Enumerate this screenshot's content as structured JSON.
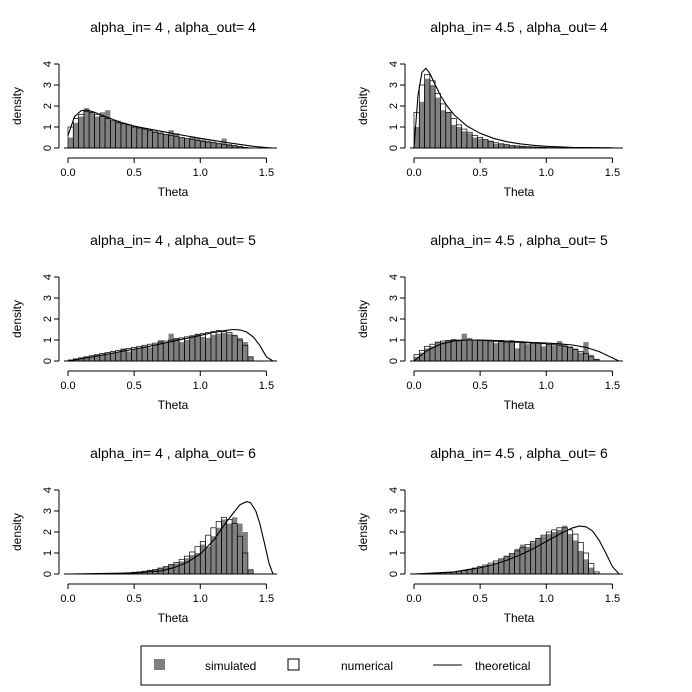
{
  "chart_data": [
    {
      "type": "bar",
      "title": "alpha_in= 4 , alpha_out= 4",
      "xlabel": "Theta",
      "ylabel": "density",
      "xlim": [
        0,
        1.58
      ],
      "ylim": [
        0,
        4
      ],
      "xticks": [
        "0.0",
        "0.5",
        "1.0",
        "1.5"
      ],
      "yticks": [
        "0",
        "1",
        "2",
        "3",
        "4"
      ],
      "bin_width": 0.04,
      "series": [
        {
          "name": "simulated",
          "values": [
            0.5,
            1.2,
            1.5,
            1.9,
            1.7,
            1.5,
            1.7,
            1.8,
            1.3,
            1.3,
            1.2,
            1.1,
            1.05,
            1.0,
            0.95,
            0.9,
            0.8,
            0.75,
            0.65,
            0.85,
            0.7,
            0.5,
            0.45,
            0.55,
            0.5,
            0.4,
            0.35,
            0.3,
            0.25,
            0.45,
            0.2,
            0.15,
            0.1,
            0.05,
            0.02
          ]
        },
        {
          "name": "numerical",
          "values": [
            1.0,
            1.4,
            1.6,
            1.75,
            1.7,
            1.6,
            1.5,
            1.4,
            1.3,
            1.2,
            1.15,
            1.1,
            1.0,
            0.95,
            0.9,
            0.82,
            0.75,
            0.7,
            0.65,
            0.6,
            0.55,
            0.5,
            0.45,
            0.4,
            0.35,
            0.32,
            0.28,
            0.25,
            0.2,
            0.17,
            0.13,
            0.1,
            0.06,
            0.03,
            0.01
          ]
        }
      ],
      "theoretical": {
        "x": [
          0,
          0.05,
          0.1,
          0.15,
          0.2,
          0.3,
          0.4,
          0.5,
          0.6,
          0.7,
          0.8,
          0.9,
          1.0,
          1.1,
          1.2,
          1.3,
          1.4,
          1.5,
          1.55
        ],
        "y": [
          0.6,
          1.5,
          1.78,
          1.8,
          1.7,
          1.45,
          1.22,
          1.05,
          0.92,
          0.8,
          0.68,
          0.57,
          0.46,
          0.36,
          0.26,
          0.17,
          0.08,
          0.02,
          0
        ]
      }
    },
    {
      "type": "bar",
      "title": "alpha_in= 4.5 , alpha_out= 4",
      "xlabel": "Theta",
      "ylabel": "density",
      "xlim": [
        0,
        1.58
      ],
      "ylim": [
        0,
        4
      ],
      "xticks": [
        "0.0",
        "0.5",
        "1.0",
        "1.5"
      ],
      "yticks": [
        "0",
        "1",
        "2",
        "3",
        "4"
      ],
      "bin_width": 0.04,
      "series": [
        {
          "name": "simulated",
          "values": [
            1.0,
            2.2,
            3.3,
            3.0,
            2.4,
            1.8,
            1.7,
            1.1,
            1.0,
            0.8,
            0.7,
            0.5,
            0.45,
            0.4,
            0.35,
            0.2,
            0.2,
            0.15,
            0.1,
            0.1,
            0.1,
            0.05,
            0.05,
            0.04,
            0.03,
            0.02,
            0.02,
            0.01,
            0.01,
            0.01,
            0,
            0,
            0,
            0,
            0
          ]
        },
        {
          "name": "numerical",
          "values": [
            1.7,
            3.0,
            3.5,
            3.2,
            2.6,
            2.1,
            1.7,
            1.4,
            1.1,
            0.9,
            0.75,
            0.6,
            0.5,
            0.4,
            0.32,
            0.25,
            0.2,
            0.16,
            0.12,
            0.1,
            0.08,
            0.06,
            0.05,
            0.04,
            0.03,
            0.02,
            0.02,
            0.01,
            0.01,
            0.01,
            0,
            0,
            0,
            0,
            0
          ]
        }
      ],
      "theoretical": {
        "x": [
          0,
          0.03,
          0.06,
          0.09,
          0.12,
          0.15,
          0.2,
          0.25,
          0.3,
          0.4,
          0.5,
          0.6,
          0.7,
          0.8,
          0.9,
          1.0,
          1.2,
          1.5
        ],
        "y": [
          0,
          2.5,
          3.6,
          3.8,
          3.55,
          3.15,
          2.5,
          2.0,
          1.6,
          1.05,
          0.7,
          0.46,
          0.3,
          0.2,
          0.13,
          0.08,
          0.03,
          0.01
        ]
      }
    },
    {
      "type": "bar",
      "title": "alpha_in= 4 , alpha_out= 5",
      "xlabel": "Theta",
      "ylabel": "density",
      "xlim": [
        0,
        1.58
      ],
      "ylim": [
        0,
        4
      ],
      "xticks": [
        "0.0",
        "0.5",
        "1.0",
        "1.5"
      ],
      "yticks": [
        "0",
        "1",
        "2",
        "3",
        "4"
      ],
      "bin_width": 0.04,
      "series": [
        {
          "name": "simulated",
          "values": [
            0.05,
            0.1,
            0.15,
            0.2,
            0.2,
            0.3,
            0.3,
            0.35,
            0.4,
            0.4,
            0.6,
            0.45,
            0.55,
            0.6,
            0.7,
            0.65,
            0.8,
            1.0,
            0.85,
            1.3,
            1.1,
            0.9,
            1.0,
            1.2,
            1.3,
            1.15,
            1.1,
            1.25,
            1.3,
            1.35,
            1.3,
            1.25,
            1.1,
            0.9,
            0.2
          ]
        },
        {
          "name": "numerical",
          "values": [
            0.05,
            0.1,
            0.15,
            0.2,
            0.25,
            0.3,
            0.35,
            0.4,
            0.45,
            0.5,
            0.55,
            0.6,
            0.65,
            0.7,
            0.75,
            0.8,
            0.85,
            0.9,
            0.95,
            1.0,
            1.05,
            1.1,
            1.15,
            1.2,
            1.25,
            1.3,
            1.35,
            1.4,
            1.45,
            1.4,
            1.35,
            1.2,
            1.0,
            0.75,
            0.2
          ]
        }
      ],
      "theoretical": {
        "x": [
          0,
          0.2,
          0.4,
          0.6,
          0.8,
          1.0,
          1.1,
          1.2,
          1.25,
          1.3,
          1.35,
          1.4,
          1.45,
          1.5,
          1.55
        ],
        "y": [
          0,
          0.22,
          0.45,
          0.68,
          0.95,
          1.22,
          1.36,
          1.46,
          1.5,
          1.48,
          1.38,
          1.15,
          0.75,
          0.2,
          0
        ]
      }
    },
    {
      "type": "bar",
      "title": "alpha_in= 4.5 , alpha_out= 5",
      "xlabel": "Theta",
      "ylabel": "density",
      "xlim": [
        0,
        1.58
      ],
      "ylim": [
        0,
        4
      ],
      "xticks": [
        "0.0",
        "0.5",
        "1.0",
        "1.5"
      ],
      "yticks": [
        "0",
        "1",
        "2",
        "3",
        "4"
      ],
      "bin_width": 0.04,
      "series": [
        {
          "name": "simulated",
          "values": [
            0.2,
            0.4,
            0.6,
            0.7,
            0.9,
            0.9,
            1.0,
            1.05,
            1.0,
            1.3,
            1.1,
            1.0,
            1.0,
            1.0,
            0.95,
            0.85,
            1.0,
            0.9,
            1.0,
            0.6,
            0.9,
            0.8,
            0.85,
            0.9,
            0.7,
            0.8,
            0.75,
            0.95,
            0.8,
            0.7,
            0.6,
            0.4,
            0.9,
            0.3,
            0.1
          ]
        },
        {
          "name": "numerical",
          "values": [
            0.3,
            0.5,
            0.7,
            0.8,
            0.9,
            0.95,
            0.98,
            1.0,
            1.0,
            1.0,
            1.0,
            1.0,
            0.98,
            0.97,
            0.95,
            0.93,
            0.92,
            0.9,
            0.9,
            0.88,
            0.87,
            0.86,
            0.85,
            0.84,
            0.82,
            0.8,
            0.78,
            0.75,
            0.7,
            0.65,
            0.55,
            0.45,
            0.35,
            0.2,
            0.08
          ]
        }
      ],
      "theoretical": {
        "x": [
          0,
          0.1,
          0.2,
          0.3,
          0.4,
          0.5,
          0.6,
          0.7,
          0.8,
          0.9,
          1.0,
          1.1,
          1.2,
          1.3,
          1.4,
          1.5,
          1.55
        ],
        "y": [
          0,
          0.5,
          0.8,
          0.95,
          1.0,
          1.0,
          0.98,
          0.95,
          0.92,
          0.88,
          0.85,
          0.82,
          0.76,
          0.65,
          0.45,
          0.15,
          0
        ]
      }
    },
    {
      "type": "bar",
      "title": "alpha_in= 4 , alpha_out= 6",
      "xlabel": "Theta",
      "ylabel": "density",
      "xlim": [
        0,
        1.58
      ],
      "ylim": [
        0,
        4
      ],
      "xticks": [
        "0.0",
        "0.5",
        "1.0",
        "1.5"
      ],
      "yticks": [
        "0",
        "1",
        "2",
        "3",
        "4"
      ],
      "bin_width": 0.04,
      "series": [
        {
          "name": "simulated",
          "values": [
            0,
            0,
            0,
            0,
            0,
            0,
            0.01,
            0.01,
            0.02,
            0.02,
            0.03,
            0.05,
            0.1,
            0.1,
            0.15,
            0.2,
            0.2,
            0.3,
            0.35,
            0.45,
            0.5,
            0.6,
            0.75,
            0.9,
            1.0,
            1.4,
            1.3,
            1.8,
            2.2,
            2.6,
            2.4,
            2.7,
            2.4,
            2.0,
            0.2
          ]
        },
        {
          "name": "numerical",
          "values": [
            0,
            0,
            0,
            0,
            0,
            0,
            0,
            0.01,
            0.02,
            0.03,
            0.04,
            0.06,
            0.08,
            0.1,
            0.13,
            0.17,
            0.22,
            0.28,
            0.35,
            0.45,
            0.55,
            0.7,
            0.85,
            1.05,
            1.3,
            1.55,
            1.85,
            2.2,
            2.5,
            2.7,
            2.6,
            2.4,
            1.8,
            1.0,
            0.2
          ]
        }
      ],
      "theoretical": {
        "x": [
          0,
          0.5,
          0.7,
          0.8,
          0.9,
          1.0,
          1.1,
          1.2,
          1.25,
          1.3,
          1.35,
          1.38,
          1.42,
          1.45,
          1.48,
          1.52,
          1.55
        ],
        "y": [
          0,
          0.05,
          0.15,
          0.3,
          0.55,
          0.95,
          1.6,
          2.5,
          2.9,
          3.3,
          3.45,
          3.4,
          3.0,
          2.4,
          1.6,
          0.5,
          0
        ]
      }
    },
    {
      "type": "bar",
      "title": "alpha_in= 4.5 , alpha_out= 6",
      "xlabel": "Theta",
      "ylabel": "density",
      "xlim": [
        0,
        1.58
      ],
      "ylim": [
        0,
        4
      ],
      "xticks": [
        "0.0",
        "0.5",
        "1.0",
        "1.5"
      ],
      "yticks": [
        "0",
        "1",
        "2",
        "3",
        "4"
      ],
      "bin_width": 0.04,
      "series": [
        {
          "name": "simulated",
          "values": [
            0,
            0,
            0.01,
            0.02,
            0.03,
            0.05,
            0.07,
            0.1,
            0.15,
            0.2,
            0.25,
            0.3,
            0.3,
            0.35,
            0.45,
            0.55,
            0.7,
            0.85,
            0.95,
            1.2,
            1.4,
            1.3,
            1.5,
            1.7,
            1.8,
            1.9,
            2.0,
            2.1,
            2.3,
            1.9,
            1.6,
            1.1,
            0.7,
            0.3,
            0.05
          ]
        },
        {
          "name": "numerical",
          "values": [
            0,
            0.01,
            0.01,
            0.02,
            0.04,
            0.06,
            0.08,
            0.1,
            0.13,
            0.17,
            0.22,
            0.28,
            0.35,
            0.43,
            0.52,
            0.62,
            0.72,
            0.85,
            0.98,
            1.1,
            1.25,
            1.4,
            1.55,
            1.7,
            1.85,
            2.0,
            2.1,
            2.2,
            2.2,
            2.1,
            1.9,
            1.5,
            1.0,
            0.5,
            0.1
          ]
        }
      ],
      "theoretical": {
        "x": [
          0,
          0.3,
          0.5,
          0.6,
          0.7,
          0.8,
          0.9,
          1.0,
          1.1,
          1.2,
          1.25,
          1.3,
          1.35,
          1.4,
          1.45,
          1.5,
          1.55
        ],
        "y": [
          0,
          0.1,
          0.3,
          0.45,
          0.65,
          0.9,
          1.2,
          1.55,
          1.9,
          2.2,
          2.28,
          2.25,
          2.05,
          1.6,
          1.0,
          0.35,
          0
        ]
      }
    }
  ],
  "legend": {
    "items": [
      {
        "label": "simulated",
        "symbol": "filled-square",
        "color": "#808080"
      },
      {
        "label": "numerical",
        "symbol": "open-square",
        "color": "#000000"
      },
      {
        "label": "theoretical",
        "symbol": "line",
        "color": "#000000"
      }
    ]
  },
  "colors": {
    "simulated": "#808080",
    "numerical_edge": "#000000",
    "theoretical": "#000000",
    "background": "#ffffff"
  }
}
